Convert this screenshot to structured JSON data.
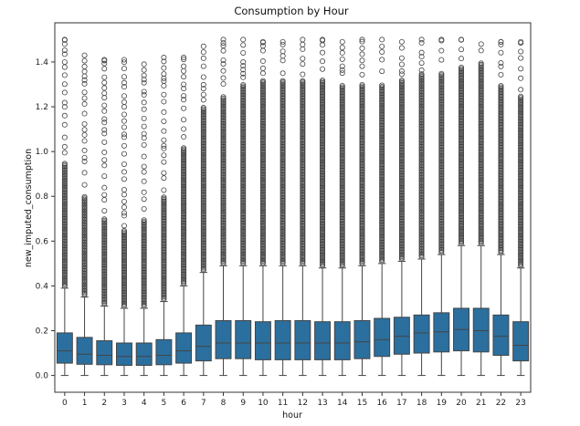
{
  "chart_data": {
    "type": "box",
    "title": "Consumption by Hour",
    "xlabel": "hour",
    "ylabel": "new_imputed_consumption",
    "ylim": [
      -0.075,
      1.575
    ],
    "yticks": [
      "0.0",
      "0.2",
      "0.4",
      "0.6",
      "0.8",
      "1.0",
      "1.2",
      "1.4"
    ],
    "categories": [
      "0",
      "1",
      "2",
      "3",
      "4",
      "5",
      "6",
      "7",
      "8",
      "9",
      "10",
      "11",
      "12",
      "13",
      "14",
      "15",
      "16",
      "17",
      "18",
      "19",
      "20",
      "21",
      "22",
      "23"
    ],
    "box_color": "#2b6f9e",
    "boxes": [
      {
        "q1": 0.055,
        "median": 0.11,
        "q3": 0.19,
        "whisker_low": 0.0,
        "whisker_high": 0.39,
        "outlier_max": 1.5,
        "sparse_start": 0.95
      },
      {
        "q1": 0.05,
        "median": 0.095,
        "q3": 0.17,
        "whisker_low": 0.0,
        "whisker_high": 0.35,
        "outlier_max": 1.43,
        "sparse_start": 0.8
      },
      {
        "q1": 0.048,
        "median": 0.09,
        "q3": 0.155,
        "whisker_low": 0.0,
        "whisker_high": 0.31,
        "outlier_max": 1.41,
        "sparse_start": 0.7
      },
      {
        "q1": 0.045,
        "median": 0.085,
        "q3": 0.145,
        "whisker_low": 0.0,
        "whisker_high": 0.3,
        "outlier_max": 1.41,
        "sparse_start": 0.65
      },
      {
        "q1": 0.045,
        "median": 0.085,
        "q3": 0.145,
        "whisker_low": 0.0,
        "whisker_high": 0.3,
        "outlier_max": 1.39,
        "sparse_start": 0.7
      },
      {
        "q1": 0.048,
        "median": 0.09,
        "q3": 0.16,
        "whisker_low": 0.0,
        "whisker_high": 0.33,
        "outlier_max": 1.42,
        "sparse_start": 0.8
      },
      {
        "q1": 0.055,
        "median": 0.11,
        "q3": 0.19,
        "whisker_low": 0.0,
        "whisker_high": 0.4,
        "outlier_max": 1.42,
        "sparse_start": 1.02
      },
      {
        "q1": 0.065,
        "median": 0.13,
        "q3": 0.225,
        "whisker_low": 0.0,
        "whisker_high": 0.46,
        "outlier_max": 1.47,
        "sparse_start": 1.2
      },
      {
        "q1": 0.075,
        "median": 0.145,
        "q3": 0.245,
        "whisker_low": 0.0,
        "whisker_high": 0.49,
        "outlier_max": 1.5,
        "sparse_start": 1.25
      },
      {
        "q1": 0.075,
        "median": 0.145,
        "q3": 0.245,
        "whisker_low": 0.0,
        "whisker_high": 0.49,
        "outlier_max": 1.5,
        "sparse_start": 1.3
      },
      {
        "q1": 0.07,
        "median": 0.145,
        "q3": 0.24,
        "whisker_low": 0.0,
        "whisker_high": 0.49,
        "outlier_max": 1.49,
        "sparse_start": 1.32
      },
      {
        "q1": 0.07,
        "median": 0.145,
        "q3": 0.245,
        "whisker_low": 0.0,
        "whisker_high": 0.49,
        "outlier_max": 1.49,
        "sparse_start": 1.32
      },
      {
        "q1": 0.07,
        "median": 0.145,
        "q3": 0.245,
        "whisker_low": 0.0,
        "whisker_high": 0.49,
        "outlier_max": 1.5,
        "sparse_start": 1.32
      },
      {
        "q1": 0.07,
        "median": 0.145,
        "q3": 0.24,
        "whisker_low": 0.0,
        "whisker_high": 0.48,
        "outlier_max": 1.5,
        "sparse_start": 1.32
      },
      {
        "q1": 0.07,
        "median": 0.145,
        "q3": 0.24,
        "whisker_low": 0.0,
        "whisker_high": 0.48,
        "outlier_max": 1.49,
        "sparse_start": 1.3
      },
      {
        "q1": 0.075,
        "median": 0.15,
        "q3": 0.245,
        "whisker_low": 0.0,
        "whisker_high": 0.49,
        "outlier_max": 1.5,
        "sparse_start": 1.3
      },
      {
        "q1": 0.085,
        "median": 0.16,
        "q3": 0.255,
        "whisker_low": 0.0,
        "whisker_high": 0.5,
        "outlier_max": 1.5,
        "sparse_start": 1.3
      },
      {
        "q1": 0.095,
        "median": 0.175,
        "q3": 0.26,
        "whisker_low": 0.0,
        "whisker_high": 0.51,
        "outlier_max": 1.49,
        "sparse_start": 1.32
      },
      {
        "q1": 0.1,
        "median": 0.19,
        "q3": 0.27,
        "whisker_low": 0.0,
        "whisker_high": 0.52,
        "outlier_max": 1.5,
        "sparse_start": 1.35
      },
      {
        "q1": 0.105,
        "median": 0.195,
        "q3": 0.28,
        "whisker_low": 0.0,
        "whisker_high": 0.54,
        "outlier_max": 1.5,
        "sparse_start": 1.35
      },
      {
        "q1": 0.11,
        "median": 0.205,
        "q3": 0.3,
        "whisker_low": 0.0,
        "whisker_high": 0.58,
        "outlier_max": 1.5,
        "sparse_start": 1.38
      },
      {
        "q1": 0.105,
        "median": 0.2,
        "q3": 0.3,
        "whisker_low": 0.0,
        "whisker_high": 0.58,
        "outlier_max": 1.48,
        "sparse_start": 1.4
      },
      {
        "q1": 0.09,
        "median": 0.175,
        "q3": 0.27,
        "whisker_low": 0.0,
        "whisker_high": 0.54,
        "outlier_max": 1.49,
        "sparse_start": 1.3
      },
      {
        "q1": 0.065,
        "median": 0.135,
        "q3": 0.24,
        "whisker_low": 0.0,
        "whisker_high": 0.48,
        "outlier_max": 1.49,
        "sparse_start": 1.25
      }
    ],
    "grid": false,
    "legend": "none"
  }
}
